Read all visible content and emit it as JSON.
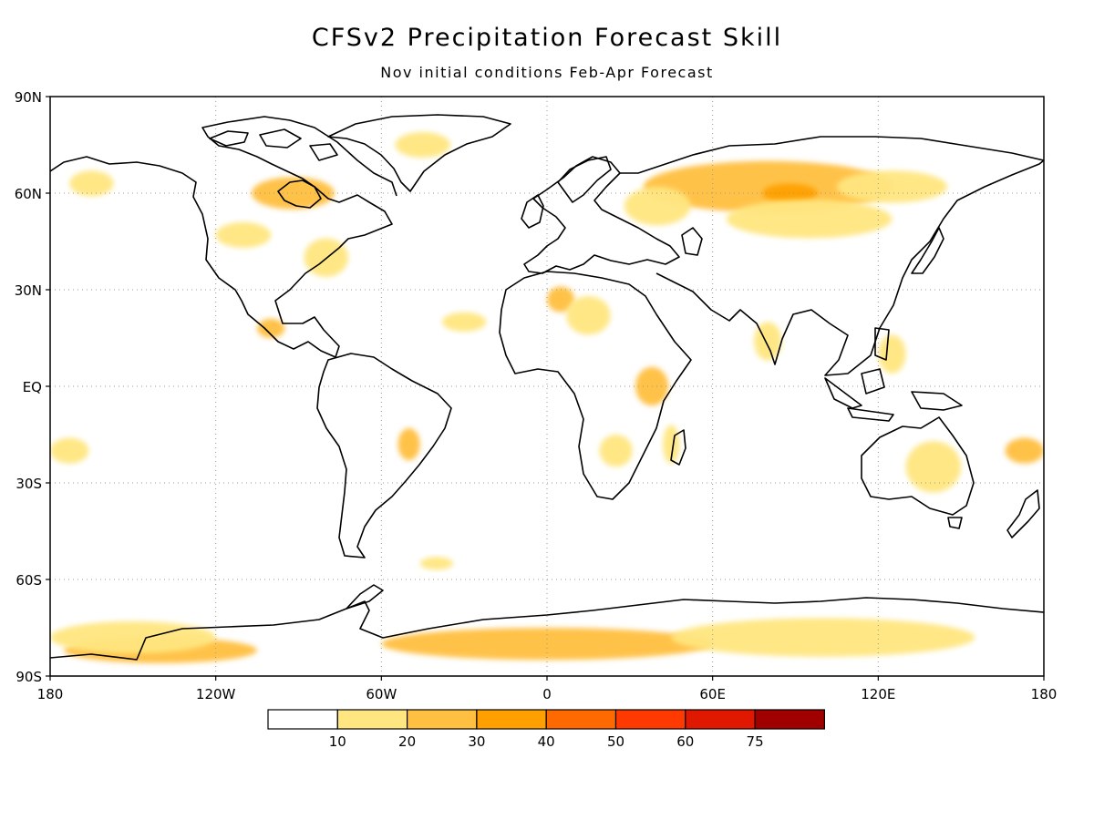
{
  "header": {
    "title": "CFSv2 Precipitation Forecast Skill",
    "subtitle": "Nov initial conditions  Feb-Apr Forecast"
  },
  "axes": {
    "lat_labels": [
      "90N",
      "60N",
      "30N",
      "EQ",
      "30S",
      "60S",
      "90S"
    ],
    "lat_values": [
      90,
      60,
      30,
      0,
      -30,
      -60,
      -90
    ],
    "lon_labels": [
      "180",
      "120W",
      "60W",
      "0",
      "60E",
      "120E",
      "180"
    ],
    "lon_values": [
      -180,
      -120,
      -60,
      0,
      60,
      120,
      180
    ],
    "grid": true
  },
  "legend": {
    "breaks": [
      "10",
      "20",
      "30",
      "40",
      "50",
      "60",
      "75"
    ],
    "colors": [
      "#ffffff",
      "#ffe680",
      "#ffbf40",
      "#ffa000",
      "#ff6a00",
      "#ff3a00",
      "#e01800",
      "#a00000"
    ]
  },
  "chart_data": {
    "type": "heatmap",
    "title": "CFSv2 Precipitation Forecast Skill",
    "subtitle": "Nov initial conditions  Feb-Apr Forecast",
    "xlim": [
      -180,
      180
    ],
    "ylim": [
      -90,
      90
    ],
    "regions": [
      {
        "lon": 80,
        "lat": 62,
        "rlon": 45,
        "rlat": 8,
        "level": 2
      },
      {
        "lon": 88,
        "lat": 60,
        "rlon": 10,
        "rlat": 3,
        "level": 3
      },
      {
        "lon": 125,
        "lat": 62,
        "rlon": 20,
        "rlat": 5,
        "level": 1
      },
      {
        "lon": 95,
        "lat": 52,
        "rlon": 30,
        "rlat": 6,
        "level": 1
      },
      {
        "lon": 40,
        "lat": 56,
        "rlon": 12,
        "rlat": 6,
        "level": 1
      },
      {
        "lon": -92,
        "lat": 60,
        "rlon": 15,
        "rlat": 5,
        "level": 2
      },
      {
        "lon": -80,
        "lat": 40,
        "rlon": 8,
        "rlat": 6,
        "level": 1
      },
      {
        "lon": -110,
        "lat": 47,
        "rlon": 10,
        "rlat": 4,
        "level": 1
      },
      {
        "lon": -45,
        "lat": 75,
        "rlon": 10,
        "rlat": 4,
        "level": 1
      },
      {
        "lon": -165,
        "lat": 63,
        "rlon": 8,
        "rlat": 4,
        "level": 1
      },
      {
        "lon": 5,
        "lat": 27,
        "rlon": 5,
        "rlat": 4,
        "level": 2
      },
      {
        "lon": 15,
        "lat": 22,
        "rlon": 8,
        "rlat": 6,
        "level": 1
      },
      {
        "lon": 38,
        "lat": 0,
        "rlon": 6,
        "rlat": 6,
        "level": 2
      },
      {
        "lon": 25,
        "lat": -20,
        "rlon": 6,
        "rlat": 5,
        "level": 1
      },
      {
        "lon": 45,
        "lat": -18,
        "rlon": 3,
        "rlat": 6,
        "level": 1
      },
      {
        "lon": 80,
        "lat": 14,
        "rlon": 5,
        "rlat": 6,
        "level": 1
      },
      {
        "lon": -50,
        "lat": -18,
        "rlon": 4,
        "rlat": 5,
        "level": 2
      },
      {
        "lon": -100,
        "lat": 18,
        "rlon": 5,
        "rlat": 3,
        "level": 2
      },
      {
        "lon": 140,
        "lat": -25,
        "rlon": 10,
        "rlat": 8,
        "level": 1
      },
      {
        "lon": 173,
        "lat": -20,
        "rlon": 7,
        "rlat": 4,
        "level": 2
      },
      {
        "lon": -173,
        "lat": -20,
        "rlon": 7,
        "rlat": 4,
        "level": 1
      },
      {
        "lon": 125,
        "lat": 10,
        "rlon": 5,
        "rlat": 6,
        "level": 1
      },
      {
        "lon": -30,
        "lat": 20,
        "rlon": 8,
        "rlat": 3,
        "level": 1
      },
      {
        "lon": -40,
        "lat": -55,
        "rlon": 6,
        "rlat": 2,
        "level": 1
      },
      {
        "lon": 0,
        "lat": -80,
        "rlon": 60,
        "rlat": 5,
        "level": 2
      },
      {
        "lon": -140,
        "lat": -82,
        "rlon": 35,
        "rlat": 4,
        "level": 2
      },
      {
        "lon": 100,
        "lat": -78,
        "rlon": 55,
        "rlat": 6,
        "level": 1
      },
      {
        "lon": -150,
        "lat": -78,
        "rlon": 30,
        "rlat": 5,
        "level": 1
      }
    ]
  }
}
